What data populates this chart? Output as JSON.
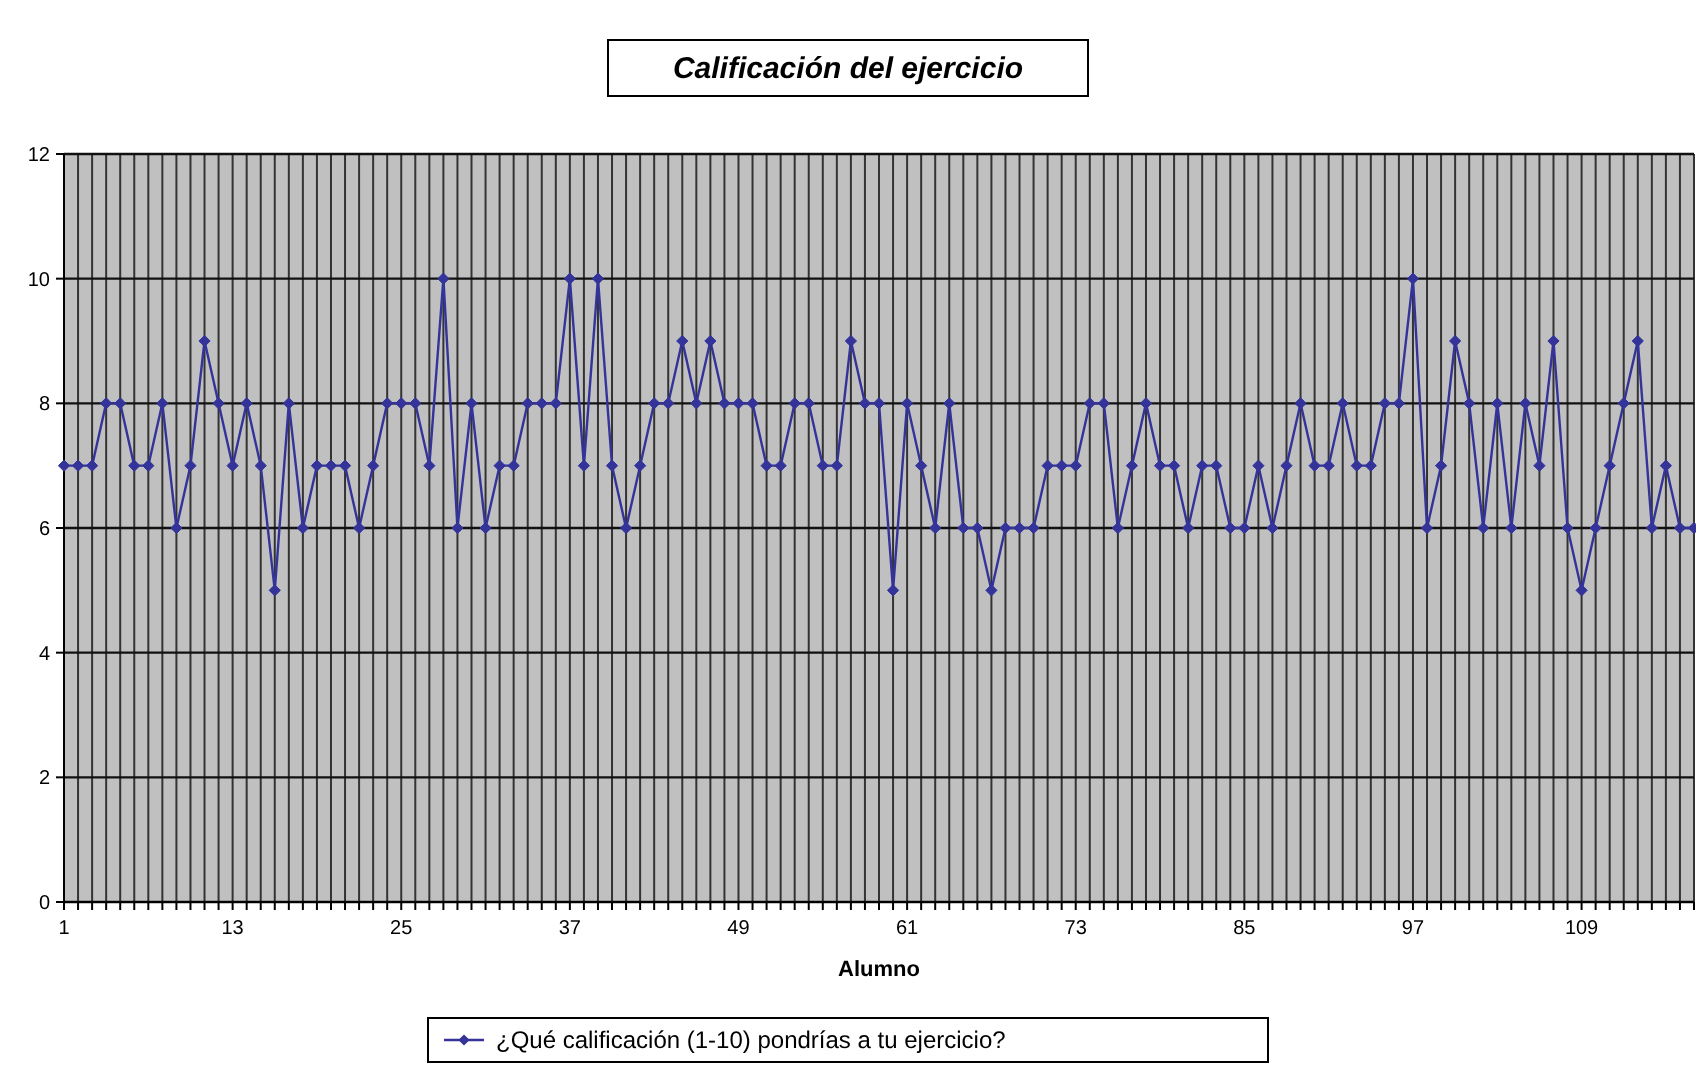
{
  "chart_data": {
    "type": "line",
    "title": "Calificación del ejercicio",
    "xlabel": "Alumno",
    "categories": [
      "1",
      null,
      null,
      null,
      null,
      null,
      null,
      null,
      null,
      null,
      null,
      null,
      "13",
      null,
      null,
      null,
      null,
      null,
      null,
      null,
      null,
      null,
      null,
      null,
      "25",
      null,
      null,
      null,
      null,
      null,
      null,
      null,
      null,
      null,
      null,
      null,
      "37",
      null,
      null,
      null,
      null,
      null,
      null,
      null,
      null,
      null,
      null,
      null,
      "49",
      null,
      null,
      null,
      null,
      null,
      null,
      null,
      null,
      null,
      null,
      null,
      "61",
      null,
      null,
      null,
      null,
      null,
      null,
      null,
      null,
      null,
      null,
      null,
      "73",
      null,
      null,
      null,
      null,
      null,
      null,
      null,
      null,
      null,
      null,
      null,
      "85",
      null,
      null,
      null,
      null,
      null,
      null,
      null,
      null,
      null,
      null,
      null,
      "97",
      null,
      null,
      null,
      null,
      null,
      null,
      null,
      null,
      null,
      null,
      null,
      "109",
      null,
      null,
      null,
      null,
      null,
      null,
      null,
      null
    ],
    "series": [
      {
        "name": "¿Qué calificación (1-10) pondrías a tu ejercicio?",
        "color": "#333399",
        "values": [
          7,
          7,
          7,
          8,
          8,
          7,
          7,
          8,
          6,
          7,
          9,
          8,
          7,
          8,
          7,
          5,
          8,
          6,
          7,
          7,
          7,
          6,
          7,
          8,
          8,
          8,
          7,
          10,
          6,
          8,
          6,
          7,
          7,
          8,
          8,
          8,
          10,
          7,
          10,
          7,
          6,
          7,
          8,
          8,
          9,
          8,
          9,
          8,
          8,
          8,
          7,
          7,
          8,
          8,
          7,
          7,
          9,
          8,
          8,
          5,
          8,
          7,
          6,
          8,
          6,
          6,
          5,
          6,
          6,
          6,
          7,
          7,
          7,
          8,
          8,
          6,
          7,
          8,
          7,
          7,
          6,
          7,
          7,
          6,
          6,
          7,
          6,
          7,
          8,
          7,
          7,
          8,
          7,
          7,
          8,
          8,
          10,
          6,
          7,
          9,
          8,
          6,
          8,
          6,
          8,
          7,
          9,
          6,
          5,
          6,
          7,
          8,
          9,
          6,
          7,
          6,
          6
        ]
      }
    ],
    "ylim": [
      0,
      12
    ],
    "yticks": [
      0,
      2,
      4,
      6,
      8,
      10,
      12
    ],
    "grid": true,
    "legend": "bottom",
    "marker": "diamond",
    "line_style": "solid"
  }
}
